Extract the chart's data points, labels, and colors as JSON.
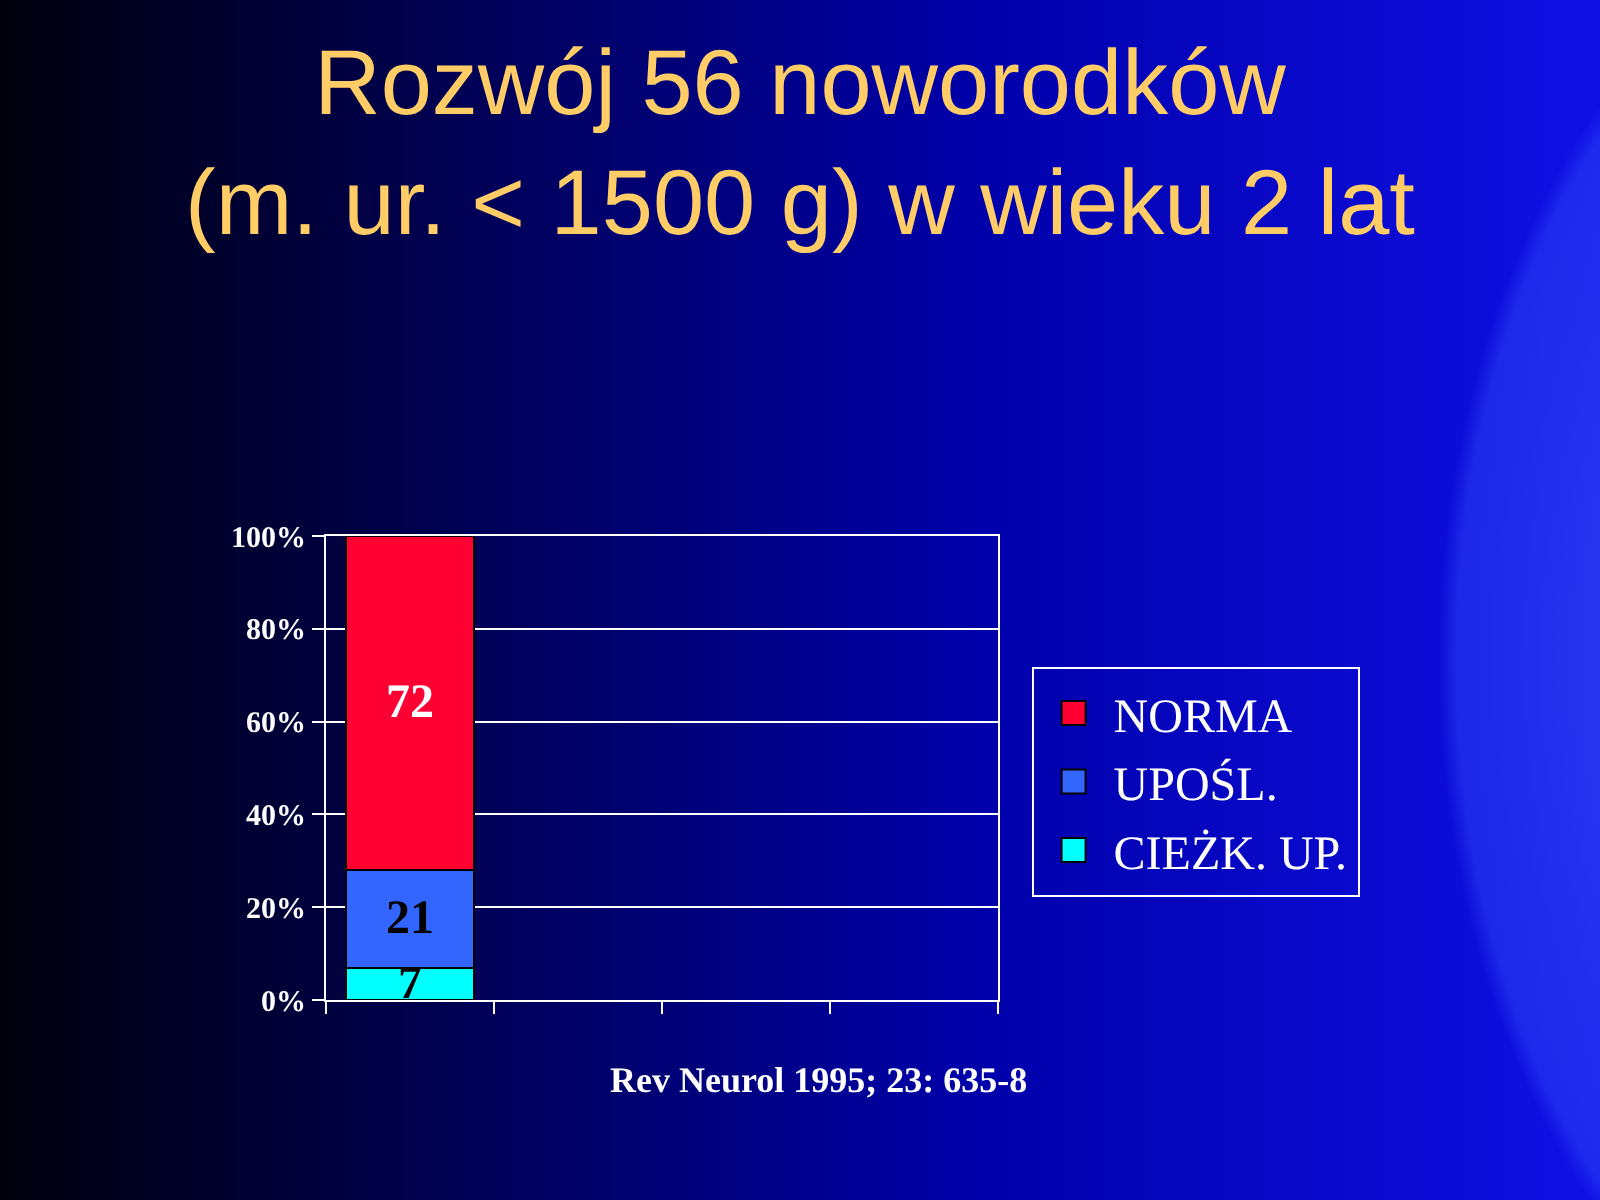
{
  "chart_data": {
    "type": "bar",
    "title": "Rozwój 56 noworodków\n(m. ur. < 1500 g) w wieku 2 lat",
    "categories": [
      null,
      null,
      null,
      null
    ],
    "stacked": true,
    "series": [
      {
        "name": "CIEŻK. UP.",
        "color": "#00ffff",
        "values": [
          7,
          null,
          null,
          null
        ]
      },
      {
        "name": "UPOŚL.",
        "color": "#3366ff",
        "values": [
          21,
          null,
          null,
          null
        ]
      },
      {
        "name": "NORMA",
        "color": "#ff0033",
        "values": [
          72,
          null,
          null,
          null
        ]
      }
    ],
    "ylim": [
      0,
      100
    ],
    "yticks": [
      {
        "value": 0,
        "label": "0%"
      },
      {
        "value": 20,
        "label": "20%"
      },
      {
        "value": 40,
        "label": "40%"
      },
      {
        "value": 60,
        "label": "60%"
      },
      {
        "value": 80,
        "label": "80%"
      },
      {
        "value": 100,
        "label": "100%"
      }
    ],
    "grid": "y",
    "legend": "right",
    "data_labels": true,
    "annotations": [
      "Rev Neurol 1995; 23: 635-8"
    ]
  }
}
